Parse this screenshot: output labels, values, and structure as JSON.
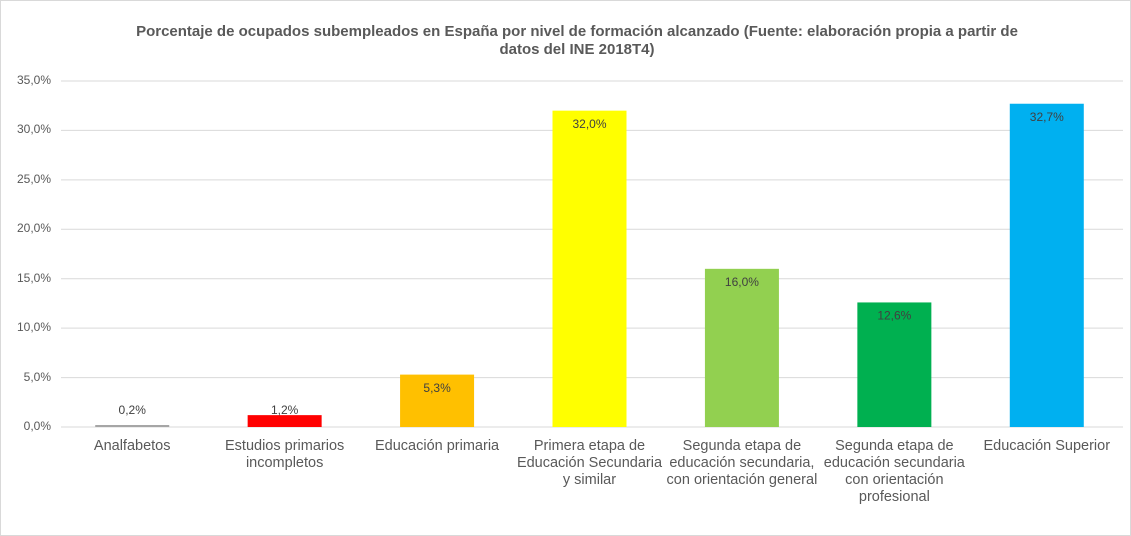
{
  "chart_data": {
    "type": "bar",
    "title": "Porcentaje de ocupados subempleados en España por nivel de formación alcanzado (Fuente: elaboración propia a partir de datos del INE 2018T4)",
    "categories": [
      "Analfabetos",
      "Estudios primarios incompletos",
      "Educación primaria",
      "Primera etapa de Educación Secundaria y similar",
      "Segunda etapa de educación secundaria, con orientación general",
      "Segunda etapa de educación secundaria con orientación profesional",
      "Educación Superior"
    ],
    "values": [
      0.2,
      1.2,
      5.3,
      32.0,
      16.0,
      12.6,
      32.7
    ],
    "value_labels": [
      "0,2%",
      "1,2%",
      "5,3%",
      "32,0%",
      "16,0%",
      "12,6%",
      "32,7%"
    ],
    "colors": [
      "#a5a5a5",
      "#ff0000",
      "#ffc000",
      "#ffff00",
      "#92d050",
      "#00b050",
      "#00b0f0"
    ],
    "ylim": [
      0,
      35
    ],
    "yticks": [
      {
        "value": 0,
        "label": "0,0%"
      },
      {
        "value": 5,
        "label": "5,0%"
      },
      {
        "value": 10,
        "label": "10,0%"
      },
      {
        "value": 15,
        "label": "15,0%"
      },
      {
        "value": 20,
        "label": "20,0%"
      },
      {
        "value": 25,
        "label": "25,0%"
      },
      {
        "value": 30,
        "label": "30,0%"
      },
      {
        "value": 35,
        "label": "35,0%"
      }
    ],
    "grid": true
  }
}
